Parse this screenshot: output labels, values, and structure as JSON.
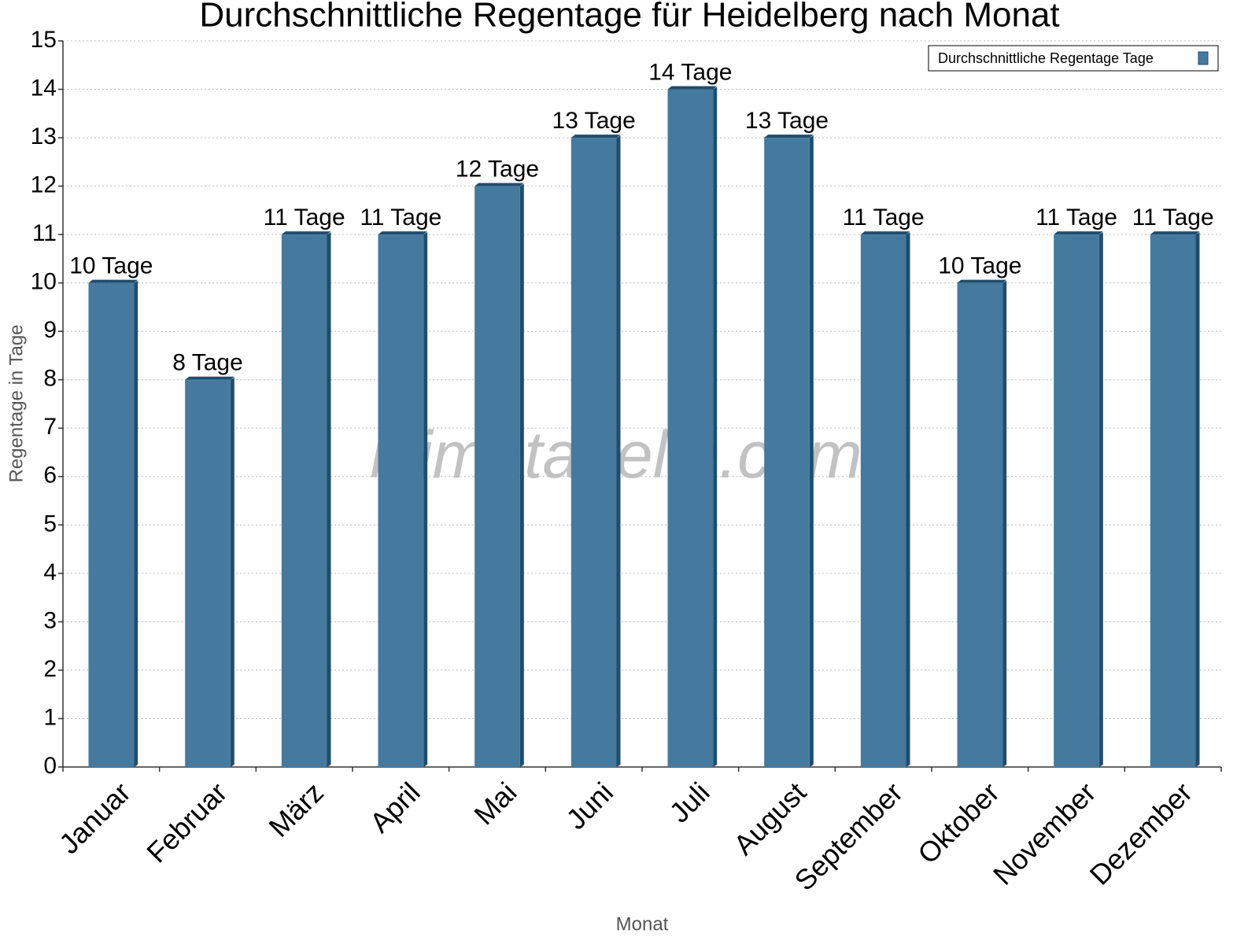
{
  "chart_data": {
    "type": "bar",
    "title": "Durchschnittliche Regentage für Heidelberg nach Monat",
    "x_label": "Monat",
    "y_label": "Regentage in Tage",
    "watermark": "klimatabelle.com",
    "categories": [
      "Januar",
      "Februar",
      "März",
      "April",
      "Mai",
      "Juni",
      "Juli",
      "August",
      "September",
      "Oktober",
      "November",
      "Dezember"
    ],
    "series": [
      {
        "name": "Durchschnittliche Regentage Tage",
        "color": "#457a9e",
        "values": [
          10,
          8,
          11,
          11,
          12,
          13,
          14,
          13,
          11,
          10,
          11,
          11
        ],
        "value_labels": [
          "10 Tage",
          "8 Tage",
          "11 Tage",
          "11 Tage",
          "12 Tage",
          "13 Tage",
          "14 Tage",
          "13 Tage",
          "11 Tage",
          "10 Tage",
          "11 Tage",
          "11 Tage"
        ]
      }
    ],
    "ylim": [
      0,
      15
    ],
    "yticks": [
      0,
      1,
      2,
      3,
      4,
      5,
      6,
      7,
      8,
      9,
      10,
      11,
      12,
      13,
      14,
      15
    ],
    "grid": true,
    "legend": "upper right"
  }
}
